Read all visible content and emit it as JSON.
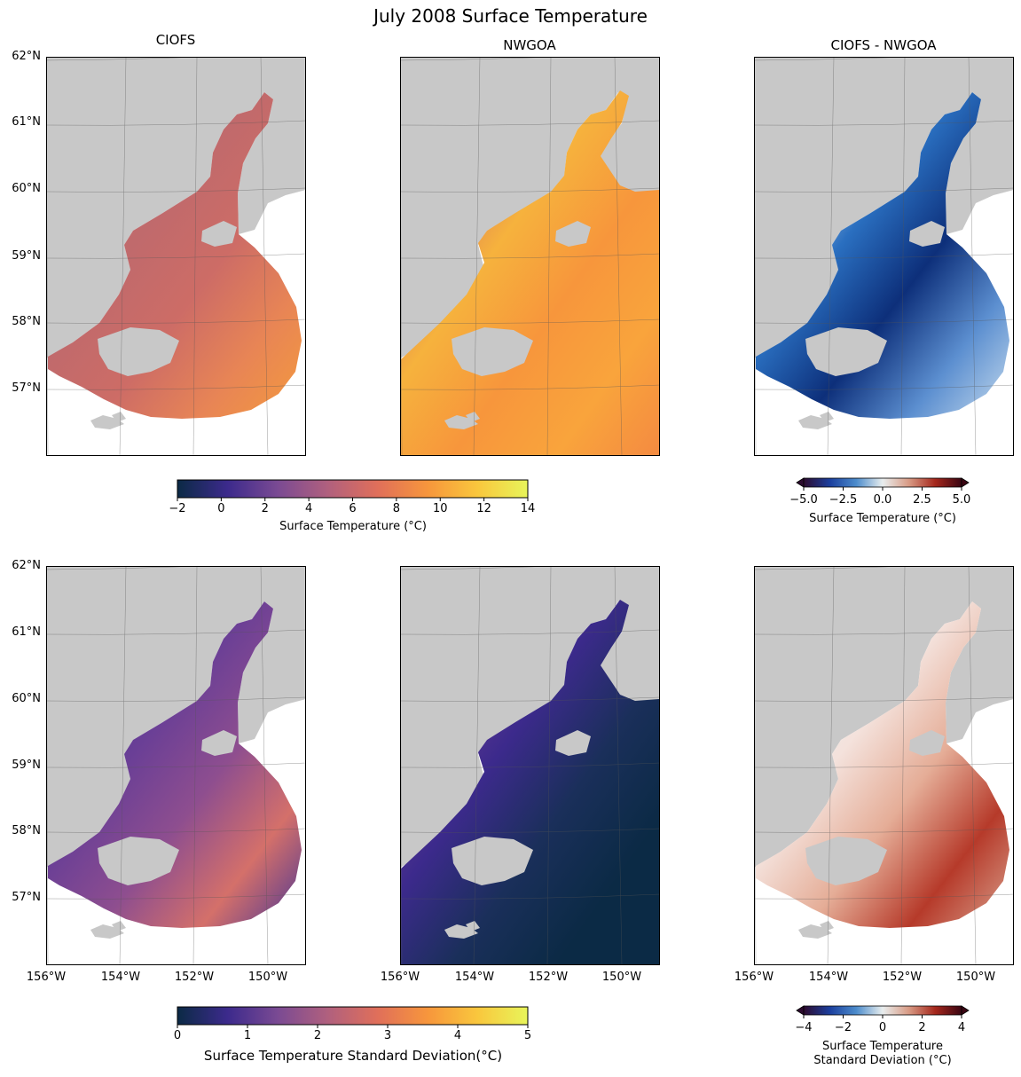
{
  "figure": {
    "title": "July 2008 Surface Temperature"
  },
  "panels": {
    "ciofs": {
      "title": "CIOFS"
    },
    "nwgoa": {
      "title": "NWGOA"
    },
    "diff": {
      "title": "CIOFS - NWGOA"
    }
  },
  "lat_ticks": [
    "62°N",
    "61°N",
    "60°N",
    "59°N",
    "58°N",
    "57°N"
  ],
  "lon_ticks": [
    "156°W",
    "154°W",
    "152°W",
    "150°W"
  ],
  "colorbars": {
    "temp": {
      "label": "Surface Temperature (°C)",
      "ticks": [
        "−2",
        "0",
        "2",
        "4",
        "6",
        "8",
        "10",
        "12",
        "14"
      ],
      "colormap": "thermal"
    },
    "temp_diff": {
      "label": "Surface Temperature (°C)",
      "ticks": [
        "−5.0",
        "−2.5",
        "0.0",
        "2.5",
        "5.0"
      ],
      "colormap": "balance"
    },
    "std": {
      "label": "Surface Temperature Standard Deviation(°C)",
      "ticks": [
        "0",
        "1",
        "2",
        "3",
        "4",
        "5"
      ],
      "colormap": "thermal"
    },
    "std_diff": {
      "label_line1": "Surface Temperature",
      "label_line2": "Standard Deviation (°C)",
      "ticks": [
        "−4",
        "−2",
        "0",
        "2",
        "4"
      ],
      "colormap": "balance"
    }
  },
  "colors": {
    "land": "#c8c8c8",
    "thermal": [
      "#0b2a45",
      "#3c2a8c",
      "#7a4a93",
      "#b0607e",
      "#e06f5a",
      "#f7963c",
      "#f9c73d",
      "#e8f55a"
    ],
    "balance": [
      "#2d0b2f",
      "#1b3f9e",
      "#4c8ccc",
      "#e9eeee",
      "#d89a84",
      "#a5271c",
      "#3a0512"
    ]
  }
}
